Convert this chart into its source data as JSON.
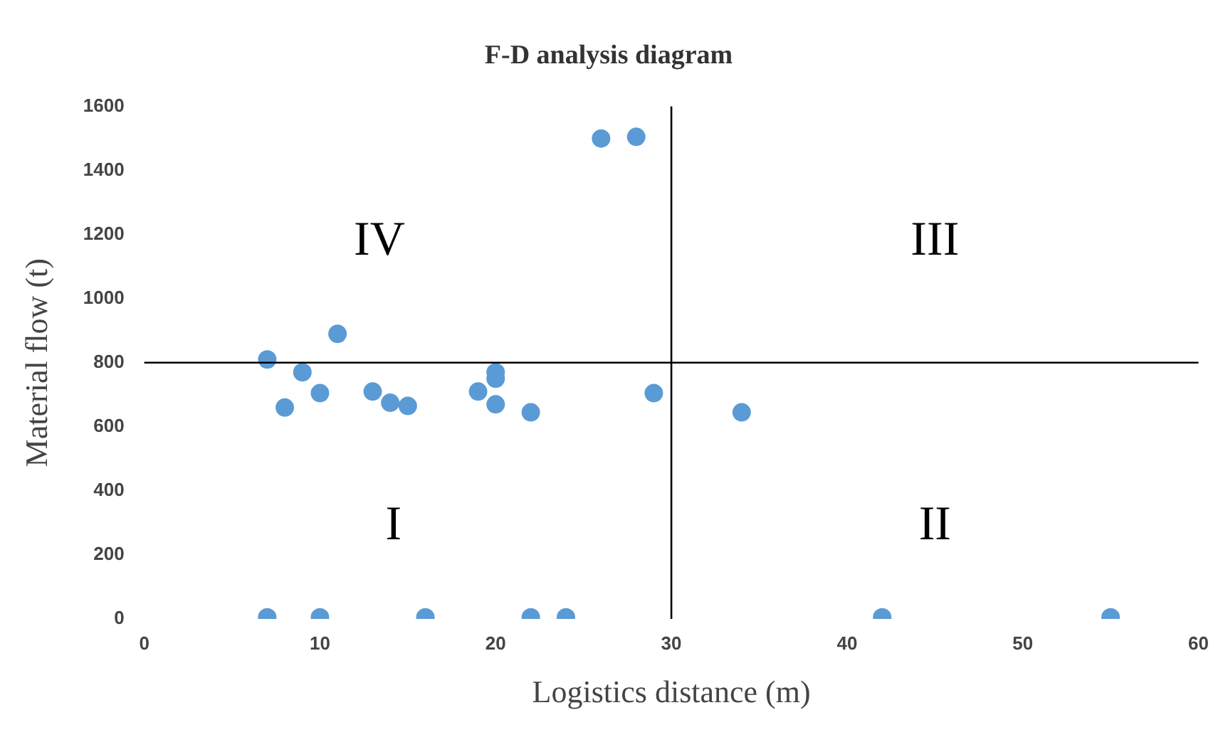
{
  "chart_data": {
    "type": "scatter",
    "title": "F-D analysis diagram",
    "xlabel": "Logistics distance (m)",
    "ylabel": "Material flow (t)",
    "x": [
      7,
      11,
      9,
      8,
      10,
      13,
      14,
      15,
      19,
      20,
      20,
      20,
      22,
      26,
      28,
      29,
      34,
      7,
      10,
      16,
      22,
      24,
      42,
      55
    ],
    "series": [
      {
        "color": "#5b9bd5",
        "values": [
          810,
          890,
          770,
          660,
          705,
          710,
          675,
          665,
          710,
          770,
          750,
          670,
          645,
          1500,
          1505,
          705,
          645,
          5,
          5,
          5,
          5,
          5,
          5,
          5
        ]
      }
    ],
    "xlim": [
      0,
      60
    ],
    "xticks": [
      0,
      10,
      20,
      30,
      40,
      50,
      60
    ],
    "ylim": [
      0,
      1600
    ],
    "yticks": [
      0,
      200,
      400,
      600,
      800,
      1000,
      1200,
      1400,
      1600
    ],
    "grid": false,
    "legend": false,
    "marker": "circle",
    "ref_lines": [
      {
        "axis": "x",
        "value": 30,
        "color": "#000000"
      },
      {
        "axis": "y",
        "value": 800,
        "color": "#000000"
      }
    ],
    "annotations": [
      "IV",
      "III",
      "I",
      "II"
    ]
  }
}
